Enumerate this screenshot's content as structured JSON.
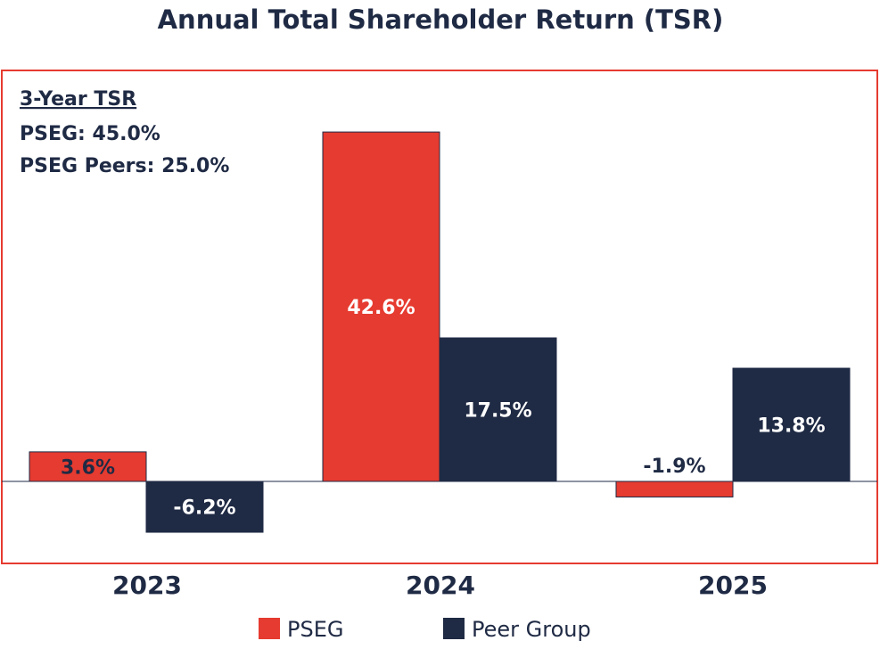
{
  "chart_data": {
    "type": "bar",
    "title": "Annual Total Shareholder Return (TSR)",
    "categories": [
      "2023",
      "2024",
      "2025"
    ],
    "series": [
      {
        "name": "PSEG",
        "values": [
          3.6,
          42.6,
          -1.9
        ],
        "labels": [
          "3.6%",
          "42.6%",
          "-1.9%"
        ],
        "color": "#e63b30"
      },
      {
        "name": "Peer Group",
        "values": [
          -6.2,
          17.5,
          13.8
        ],
        "labels": [
          "-6.2%",
          "17.5%",
          "13.8%"
        ],
        "color": "#1f2a44"
      }
    ],
    "annotation": {
      "heading": "3-Year TSR",
      "lines": [
        "PSEG: 45.0%",
        "PSEG Peers: 25.0%"
      ]
    },
    "legend_position": "bottom",
    "ylim": [
      -10,
      45
    ],
    "frame_color": "#e63b30",
    "text_color": "#1f2a44"
  }
}
